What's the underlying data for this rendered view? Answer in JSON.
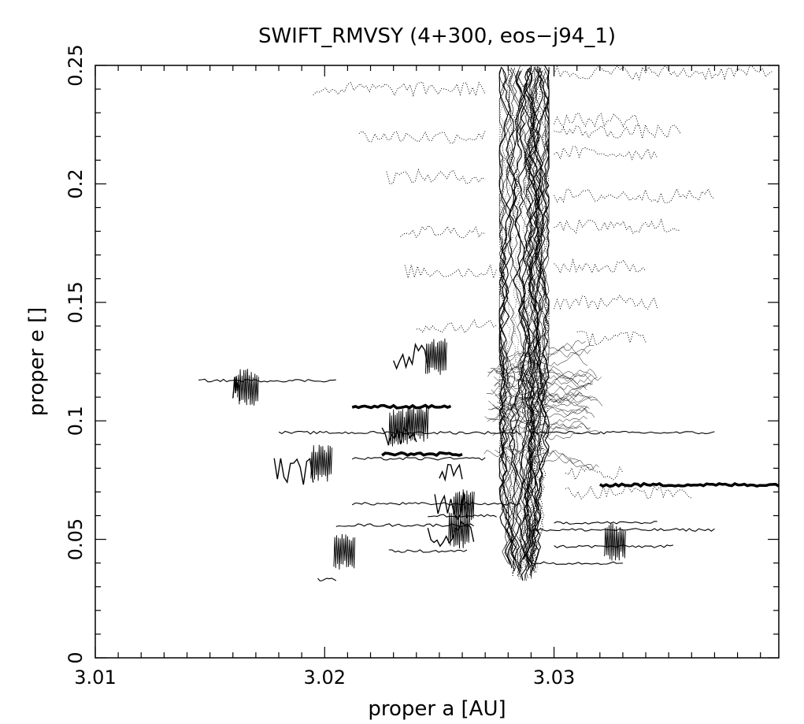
{
  "chart_data": {
    "type": "line",
    "title": "SWIFT_RMVSY (4+300, eos−j94_1)",
    "xlabel": "proper a [AU]",
    "ylabel": "proper e []",
    "xlim": [
      3.01,
      3.0398
    ],
    "ylim": [
      0,
      0.25
    ],
    "x_ticks": [
      "3.01",
      "3.02",
      "3.03"
    ],
    "y_ticks": [
      "0",
      "0.05",
      "0.1",
      "0.15",
      "0.2",
      "0.25"
    ],
    "grid": false,
    "legend": "none",
    "colors": {
      "ink": "#000000",
      "background": "#ffffff"
    },
    "vertical_band": {
      "a_center": 3.0287,
      "a_spread": 0.0006,
      "e_range": [
        0.032,
        0.25
      ]
    },
    "horizontal_tracks": [
      {
        "a": [
          3.0145,
          3.0205
        ],
        "e": 0.117,
        "style": "solid"
      },
      {
        "a": [
          3.016,
          3.0163
        ],
        "e": 0.114,
        "style": "jitter"
      },
      {
        "a": [
          3.0178,
          3.0195
        ],
        "e": 0.079,
        "style": "jitter"
      },
      {
        "a": [
          3.0197,
          3.0205
        ],
        "e": 0.033,
        "style": "solid"
      },
      {
        "a": [
          3.0205,
          3.0265
        ],
        "e": 0.056,
        "style": "solid"
      },
      {
        "a": [
          3.018,
          3.0285
        ],
        "e": 0.095,
        "style": "solid"
      },
      {
        "a": [
          3.0212,
          3.0255
        ],
        "e": 0.106,
        "style": "thick"
      },
      {
        "a": [
          3.0212,
          3.027
        ],
        "e": 0.084,
        "style": "solid"
      },
      {
        "a": [
          3.0225,
          3.026
        ],
        "e": 0.086,
        "style": "thick"
      },
      {
        "a": [
          3.0212,
          3.0285
        ],
        "e": 0.065,
        "style": "solid"
      },
      {
        "a": [
          3.0228,
          3.0262
        ],
        "e": 0.045,
        "style": "solid"
      },
      {
        "a": [
          3.0245,
          3.0275
        ],
        "e": 0.06,
        "style": "solid"
      },
      {
        "a": [
          3.029,
          3.037
        ],
        "e": 0.054,
        "style": "solid"
      },
      {
        "a": [
          3.029,
          3.037
        ],
        "e": 0.095,
        "style": "solid"
      },
      {
        "a": [
          3.03,
          3.0352
        ],
        "e": 0.047,
        "style": "solid"
      },
      {
        "a": [
          3.03,
          3.0345
        ],
        "e": 0.057,
        "style": "solid"
      },
      {
        "a": [
          3.032,
          3.0398
        ],
        "e": 0.073,
        "style": "thick"
      },
      {
        "a": [
          3.029,
          3.033
        ],
        "e": 0.04,
        "style": "solid"
      },
      {
        "a": [
          3.025,
          3.026
        ],
        "e": 0.08,
        "style": "jitter"
      },
      {
        "a": [
          3.0248,
          3.0262
        ],
        "e": 0.064,
        "style": "jitter"
      },
      {
        "a": [
          3.0245,
          3.0265
        ],
        "e": 0.052,
        "style": "jitter"
      },
      {
        "a": [
          3.0225,
          3.024
        ],
        "e": 0.095,
        "style": "jitter"
      },
      {
        "a": [
          3.023,
          3.0245
        ],
        "e": 0.128,
        "style": "jitter"
      },
      {
        "a": [
          3.0305,
          3.033
        ],
        "e": 0.078,
        "style": "dotted"
      },
      {
        "a": [
          3.0305,
          3.036
        ],
        "e": 0.07,
        "style": "dotted"
      },
      {
        "a": [
          3.031,
          3.034
        ],
        "e": 0.135,
        "style": "dotted"
      },
      {
        "a": [
          3.03,
          3.0345
        ],
        "e": 0.15,
        "style": "dotted"
      },
      {
        "a": [
          3.024,
          3.0275
        ],
        "e": 0.14,
        "style": "dotted"
      },
      {
        "a": [
          3.0235,
          3.0275
        ],
        "e": 0.163,
        "style": "dotted"
      },
      {
        "a": [
          3.0233,
          3.027
        ],
        "e": 0.18,
        "style": "dotted"
      },
      {
        "a": [
          3.0227,
          3.027
        ],
        "e": 0.203,
        "style": "dotted"
      },
      {
        "a": [
          3.0215,
          3.027
        ],
        "e": 0.22,
        "style": "dotted"
      },
      {
        "a": [
          3.0195,
          3.027
        ],
        "e": 0.24,
        "style": "dotted"
      },
      {
        "a": [
          3.03,
          3.0345
        ],
        "e": 0.213,
        "style": "dotted"
      },
      {
        "a": [
          3.03,
          3.0337
        ],
        "e": 0.227,
        "style": "dotted"
      },
      {
        "a": [
          3.03,
          3.0355
        ],
        "e": 0.222,
        "style": "dotted"
      },
      {
        "a": [
          3.03,
          3.0355
        ],
        "e": 0.182,
        "style": "dotted"
      },
      {
        "a": [
          3.03,
          3.037
        ],
        "e": 0.195,
        "style": "dotted"
      },
      {
        "a": [
          3.03,
          3.034
        ],
        "e": 0.165,
        "style": "dotted"
      },
      {
        "a": [
          3.03,
          3.0395
        ],
        "e": 0.247,
        "style": "dotted"
      }
    ]
  }
}
